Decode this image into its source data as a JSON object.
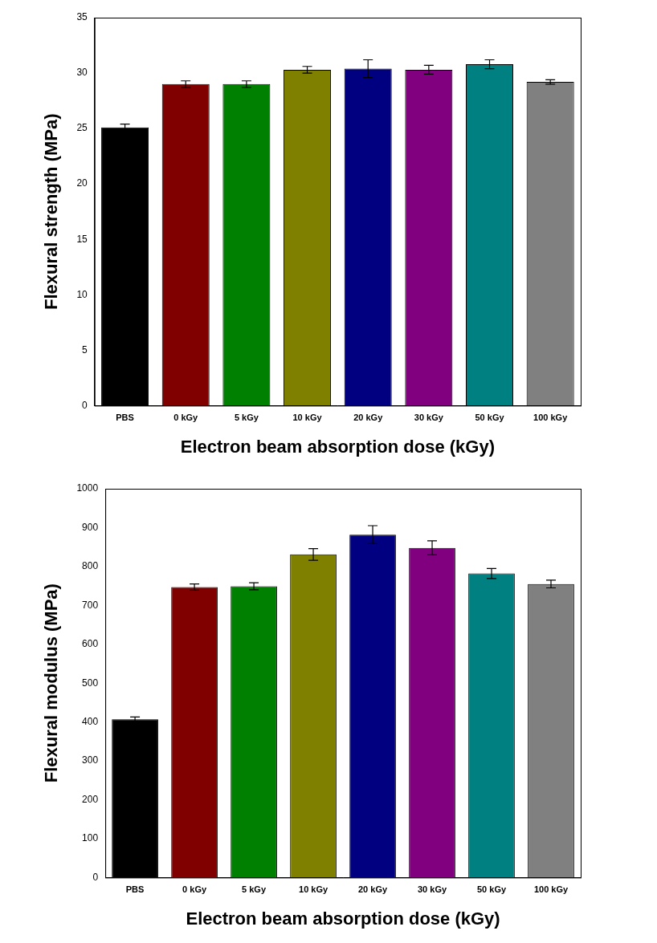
{
  "chart_data": [
    {
      "type": "bar",
      "categories": [
        "PBS",
        "0 kGy",
        "5 kGy",
        "10 kGy",
        "20 kGy",
        "30 kGy",
        "50 kGy",
        "100 kGy"
      ],
      "values": [
        25.1,
        29.0,
        29.0,
        30.3,
        30.4,
        30.3,
        30.8,
        29.2
      ],
      "errors": [
        0.3,
        0.3,
        0.3,
        0.3,
        0.8,
        0.4,
        0.4,
        0.2
      ],
      "colors": [
        "#000000",
        "#800000",
        "#008000",
        "#808000",
        "#000080",
        "#800080",
        "#008080",
        "#808080"
      ],
      "ylabel": "Flexural strength (MPa)",
      "xlabel": "Electron beam absorption dose (kGy)",
      "ylim": [
        0,
        35
      ],
      "yticks": [
        0,
        5,
        10,
        15,
        20,
        25,
        30,
        35
      ],
      "grid": false
    },
    {
      "type": "bar",
      "categories": [
        "PBS",
        "0 kGy",
        "5 kGy",
        "10 kGy",
        "20 kGy",
        "30 kGy",
        "50 kGy",
        "100 kGy"
      ],
      "values": [
        407,
        747,
        749,
        831,
        882,
        848,
        782,
        755
      ],
      "errors": [
        6,
        8,
        9,
        15,
        23,
        18,
        13,
        10
      ],
      "colors": [
        "#000000",
        "#800000",
        "#008000",
        "#808000",
        "#000080",
        "#800080",
        "#008080",
        "#808080"
      ],
      "ylabel": "Flexural modulus (MPa)",
      "xlabel": "Electron beam absorption dose (kGy)",
      "ylim": [
        0,
        1000
      ],
      "yticks": [
        0,
        100,
        200,
        300,
        400,
        500,
        600,
        700,
        800,
        900,
        1000
      ],
      "grid": false
    }
  ]
}
